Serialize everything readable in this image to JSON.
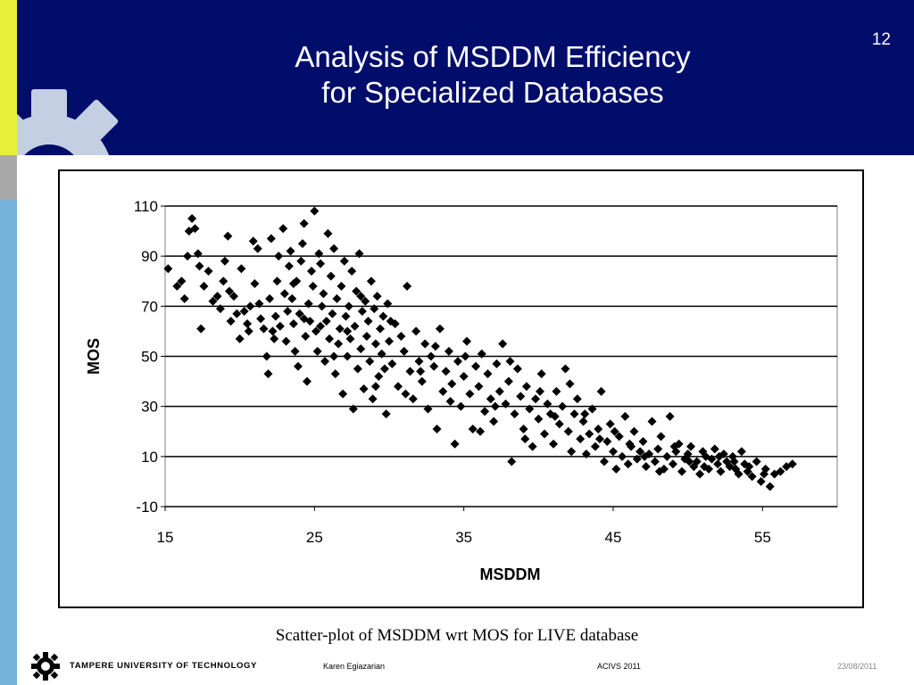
{
  "slide": {
    "title_line1": "Analysis of MSDDM Efficiency",
    "title_line2": "for Specialized Databases",
    "slide_number": "12",
    "caption": "Scatter-plot of MSDDM wrt MOS for LIVE database"
  },
  "footer": {
    "university": "TAMPERE UNIVERSITY OF TECHNOLOGY",
    "author": "Karen Egiazarian",
    "event": "ACIVS 2011",
    "date": "23/08/2011",
    "logo_icon": "gear-logo-icon"
  },
  "colors": {
    "header_bg": "#000d6b",
    "stripe_yellow": "#e8f03a",
    "stripe_gray": "#a9a9a9",
    "stripe_blue": "#76b2d9",
    "marker": "#000000"
  },
  "chart_data": {
    "type": "scatter",
    "xlabel": "MSDDM",
    "ylabel": "MOS",
    "xlim": [
      15,
      60
    ],
    "ylim": [
      -10,
      110
    ],
    "xticks": [
      15,
      25,
      35,
      45,
      55
    ],
    "yticks": [
      -10,
      10,
      30,
      50,
      70,
      90,
      110
    ],
    "grid": "horizontal",
    "marker": "diamond",
    "points": [
      [
        15.2,
        85
      ],
      [
        15.8,
        78
      ],
      [
        16.3,
        73
      ],
      [
        16.5,
        90
      ],
      [
        16.6,
        100
      ],
      [
        16.8,
        105
      ],
      [
        17.0,
        101
      ],
      [
        17.2,
        91
      ],
      [
        17.4,
        61
      ],
      [
        17.6,
        78
      ],
      [
        17.9,
        84
      ],
      [
        18.2,
        72
      ],
      [
        18.5,
        74
      ],
      [
        18.9,
        80
      ],
      [
        19.0,
        88
      ],
      [
        19.2,
        98
      ],
      [
        19.4,
        64
      ],
      [
        19.6,
        74
      ],
      [
        19.8,
        67
      ],
      [
        20.0,
        57
      ],
      [
        20.1,
        85
      ],
      [
        20.3,
        68
      ],
      [
        20.5,
        63
      ],
      [
        20.7,
        70
      ],
      [
        20.9,
        96
      ],
      [
        21.0,
        79
      ],
      [
        21.2,
        93
      ],
      [
        21.4,
        65
      ],
      [
        21.6,
        61
      ],
      [
        21.8,
        50
      ],
      [
        21.9,
        43
      ],
      [
        22.0,
        73
      ],
      [
        22.1,
        97
      ],
      [
        22.3,
        57
      ],
      [
        22.4,
        66
      ],
      [
        22.5,
        80
      ],
      [
        22.6,
        90
      ],
      [
        22.7,
        62
      ],
      [
        22.9,
        101
      ],
      [
        23.0,
        75
      ],
      [
        23.1,
        56
      ],
      [
        23.2,
        68
      ],
      [
        23.3,
        86
      ],
      [
        23.4,
        92
      ],
      [
        23.5,
        73
      ],
      [
        23.6,
        63
      ],
      [
        23.7,
        52
      ],
      [
        23.8,
        80
      ],
      [
        23.9,
        46
      ],
      [
        24.0,
        67
      ],
      [
        24.1,
        88
      ],
      [
        24.2,
        95
      ],
      [
        24.3,
        103
      ],
      [
        24.4,
        58
      ],
      [
        24.5,
        40
      ],
      [
        24.6,
        71
      ],
      [
        24.7,
        64
      ],
      [
        24.8,
        84
      ],
      [
        24.9,
        78
      ],
      [
        25.0,
        108
      ],
      [
        25.1,
        60
      ],
      [
        25.2,
        52
      ],
      [
        25.3,
        91
      ],
      [
        25.4,
        87
      ],
      [
        25.5,
        70
      ],
      [
        25.6,
        75
      ],
      [
        25.7,
        48
      ],
      [
        25.8,
        64
      ],
      [
        25.9,
        99
      ],
      [
        26.0,
        57
      ],
      [
        26.1,
        82
      ],
      [
        26.2,
        67
      ],
      [
        26.3,
        93
      ],
      [
        26.4,
        43
      ],
      [
        26.5,
        73
      ],
      [
        26.6,
        55
      ],
      [
        26.7,
        61
      ],
      [
        26.8,
        78
      ],
      [
        26.9,
        35
      ],
      [
        27.0,
        88
      ],
      [
        27.1,
        66
      ],
      [
        27.2,
        50
      ],
      [
        27.3,
        70
      ],
      [
        27.4,
        57
      ],
      [
        27.5,
        84
      ],
      [
        27.6,
        29
      ],
      [
        27.7,
        62
      ],
      [
        27.8,
        76
      ],
      [
        27.9,
        45
      ],
      [
        28.0,
        91
      ],
      [
        28.1,
        53
      ],
      [
        28.2,
        68
      ],
      [
        28.3,
        37
      ],
      [
        28.4,
        72
      ],
      [
        28.5,
        58
      ],
      [
        28.6,
        64
      ],
      [
        28.7,
        48
      ],
      [
        28.8,
        80
      ],
      [
        28.9,
        33
      ],
      [
        29.0,
        69
      ],
      [
        29.1,
        55
      ],
      [
        29.2,
        74
      ],
      [
        29.3,
        42
      ],
      [
        29.4,
        61
      ],
      [
        29.5,
        51
      ],
      [
        29.6,
        66
      ],
      [
        29.7,
        45
      ],
      [
        29.8,
        27
      ],
      [
        29.9,
        71
      ],
      [
        30.0,
        56
      ],
      [
        30.2,
        47
      ],
      [
        30.4,
        63
      ],
      [
        30.6,
        38
      ],
      [
        30.8,
        58
      ],
      [
        31.0,
        52
      ],
      [
        31.2,
        78
      ],
      [
        31.4,
        44
      ],
      [
        31.6,
        33
      ],
      [
        31.8,
        60
      ],
      [
        32.0,
        48
      ],
      [
        32.2,
        40
      ],
      [
        32.4,
        55
      ],
      [
        32.6,
        29
      ],
      [
        32.8,
        50
      ],
      [
        33.0,
        46
      ],
      [
        33.2,
        21
      ],
      [
        33.4,
        61
      ],
      [
        33.6,
        36
      ],
      [
        33.8,
        44
      ],
      [
        34.0,
        52
      ],
      [
        34.2,
        39
      ],
      [
        34.4,
        15
      ],
      [
        34.6,
        48
      ],
      [
        34.8,
        30
      ],
      [
        35.0,
        42
      ],
      [
        35.2,
        56
      ],
      [
        35.4,
        35
      ],
      [
        35.6,
        21
      ],
      [
        35.8,
        46
      ],
      [
        36.0,
        38
      ],
      [
        36.2,
        51
      ],
      [
        36.4,
        28
      ],
      [
        36.6,
        43
      ],
      [
        36.8,
        33
      ],
      [
        37.0,
        24
      ],
      [
        37.2,
        47
      ],
      [
        37.4,
        36
      ],
      [
        37.6,
        55
      ],
      [
        37.8,
        31
      ],
      [
        38.0,
        40
      ],
      [
        38.2,
        8
      ],
      [
        38.4,
        27
      ],
      [
        38.6,
        45
      ],
      [
        38.8,
        34
      ],
      [
        39.0,
        21
      ],
      [
        39.2,
        38
      ],
      [
        39.4,
        29
      ],
      [
        39.6,
        14
      ],
      [
        39.8,
        33
      ],
      [
        40.0,
        25
      ],
      [
        40.2,
        43
      ],
      [
        40.4,
        19
      ],
      [
        40.6,
        31
      ],
      [
        40.8,
        27
      ],
      [
        41.0,
        15
      ],
      [
        41.2,
        36
      ],
      [
        41.4,
        23
      ],
      [
        41.6,
        30
      ],
      [
        41.8,
        45
      ],
      [
        42.0,
        20
      ],
      [
        42.2,
        12
      ],
      [
        42.4,
        27
      ],
      [
        42.6,
        33
      ],
      [
        42.8,
        17
      ],
      [
        43.0,
        24
      ],
      [
        43.2,
        11
      ],
      [
        43.4,
        19
      ],
      [
        43.6,
        29
      ],
      [
        43.8,
        14
      ],
      [
        44.0,
        21
      ],
      [
        44.2,
        36
      ],
      [
        44.4,
        8
      ],
      [
        44.6,
        16
      ],
      [
        44.8,
        23
      ],
      [
        45.0,
        12
      ],
      [
        45.2,
        5
      ],
      [
        45.4,
        18
      ],
      [
        45.6,
        10
      ],
      [
        45.8,
        26
      ],
      [
        46.0,
        7
      ],
      [
        46.2,
        14
      ],
      [
        46.4,
        20
      ],
      [
        46.6,
        9
      ],
      [
        46.8,
        12
      ],
      [
        47.0,
        16
      ],
      [
        47.2,
        6
      ],
      [
        47.4,
        11
      ],
      [
        47.6,
        24
      ],
      [
        47.8,
        8
      ],
      [
        48.0,
        13
      ],
      [
        48.2,
        18
      ],
      [
        48.4,
        5
      ],
      [
        48.6,
        10
      ],
      [
        48.8,
        26
      ],
      [
        49.0,
        7
      ],
      [
        49.2,
        12
      ],
      [
        49.4,
        15
      ],
      [
        49.6,
        4
      ],
      [
        49.8,
        9
      ],
      [
        50.0,
        11
      ],
      [
        50.2,
        14
      ],
      [
        50.4,
        6
      ],
      [
        50.6,
        8
      ],
      [
        50.8,
        3
      ],
      [
        51.0,
        12
      ],
      [
        51.2,
        10
      ],
      [
        51.4,
        5
      ],
      [
        51.6,
        9
      ],
      [
        51.8,
        13
      ],
      [
        52.0,
        7
      ],
      [
        52.2,
        4
      ],
      [
        52.4,
        11
      ],
      [
        52.6,
        8
      ],
      [
        52.8,
        6
      ],
      [
        53.0,
        10
      ],
      [
        53.2,
        5
      ],
      [
        53.4,
        3
      ],
      [
        53.6,
        12
      ],
      [
        53.8,
        7
      ],
      [
        54.0,
        4
      ],
      [
        54.3,
        2
      ],
      [
        54.6,
        8
      ],
      [
        54.9,
        0
      ],
      [
        55.2,
        5
      ],
      [
        55.5,
        -2
      ],
      [
        55.8,
        3
      ],
      [
        56.2,
        4
      ],
      [
        56.6,
        6
      ],
      [
        57.0,
        7
      ],
      [
        16.1,
        80
      ],
      [
        17.3,
        86
      ],
      [
        18.7,
        69
      ],
      [
        19.3,
        76
      ],
      [
        20.6,
        60
      ],
      [
        21.3,
        71
      ],
      [
        22.2,
        60
      ],
      [
        23.6,
        79
      ],
      [
        24.3,
        65
      ],
      [
        25.4,
        62
      ],
      [
        26.3,
        50
      ],
      [
        27.2,
        60
      ],
      [
        28.1,
        74
      ],
      [
        29.1,
        38
      ],
      [
        30.1,
        64
      ],
      [
        31.1,
        35
      ],
      [
        32.1,
        44
      ],
      [
        33.1,
        54
      ],
      [
        34.1,
        32
      ],
      [
        35.1,
        50
      ],
      [
        36.1,
        20
      ],
      [
        37.1,
        30
      ],
      [
        38.1,
        48
      ],
      [
        39.1,
        17
      ],
      [
        40.1,
        36
      ],
      [
        41.1,
        26
      ],
      [
        42.1,
        39
      ],
      [
        43.1,
        27
      ],
      [
        44.1,
        17
      ],
      [
        45.1,
        20
      ],
      [
        46.1,
        15
      ],
      [
        47.1,
        10
      ],
      [
        48.1,
        4
      ],
      [
        49.1,
        14
      ],
      [
        50.1,
        8
      ],
      [
        51.1,
        6
      ],
      [
        52.1,
        10
      ],
      [
        53.1,
        8
      ],
      [
        54.1,
        6
      ],
      [
        55.1,
        3
      ]
    ]
  }
}
